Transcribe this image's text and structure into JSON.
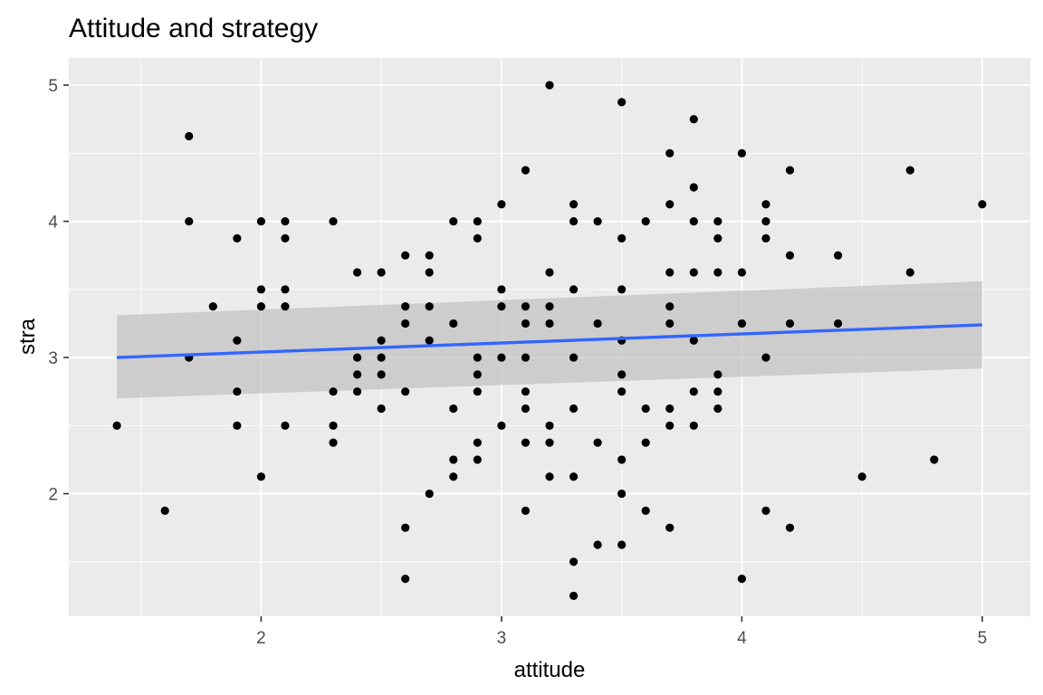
{
  "chart_data": {
    "type": "scatter",
    "title": "Attitude and strategy",
    "xlabel": "attitude",
    "ylabel": "stra",
    "xlim": [
      1.2,
      5.2
    ],
    "ylim": [
      1.1,
      5.2
    ],
    "x_ticks": [
      2,
      3,
      4,
      5
    ],
    "y_ticks": [
      2,
      3,
      4,
      5
    ],
    "x_tick_labels": [
      "2",
      "3",
      "4",
      "5"
    ],
    "y_tick_labels": [
      "2",
      "3",
      "4",
      "5"
    ],
    "grid": true,
    "legend": "none",
    "colors": {
      "panel": "#ebebeb",
      "grid": "#ffffff",
      "point": "#000000",
      "fit_line": "#3366ff",
      "confidence_band": "#bdbdbd"
    },
    "points": [
      [
        1.4,
        2.5
      ],
      [
        1.6,
        1.875
      ],
      [
        1.7,
        4.625
      ],
      [
        1.7,
        4.0
      ],
      [
        1.7,
        3.0
      ],
      [
        1.8,
        3.375
      ],
      [
        1.9,
        3.875
      ],
      [
        1.9,
        3.125
      ],
      [
        1.9,
        2.75
      ],
      [
        1.9,
        2.5
      ],
      [
        2.0,
        4.0
      ],
      [
        2.0,
        3.5
      ],
      [
        2.0,
        3.375
      ],
      [
        2.0,
        2.125
      ],
      [
        2.1,
        4.0
      ],
      [
        2.1,
        3.875
      ],
      [
        2.1,
        3.5
      ],
      [
        2.1,
        3.375
      ],
      [
        2.1,
        2.5
      ],
      [
        2.3,
        4.0
      ],
      [
        2.3,
        2.75
      ],
      [
        2.3,
        2.5
      ],
      [
        2.3,
        2.375
      ],
      [
        2.4,
        3.625
      ],
      [
        2.4,
        3.0
      ],
      [
        2.4,
        2.875
      ],
      [
        2.4,
        2.75
      ],
      [
        2.5,
        3.625
      ],
      [
        2.5,
        3.125
      ],
      [
        2.5,
        3.0
      ],
      [
        2.5,
        2.875
      ],
      [
        2.5,
        2.625
      ],
      [
        2.6,
        3.75
      ],
      [
        2.6,
        3.375
      ],
      [
        2.6,
        3.25
      ],
      [
        2.6,
        2.75
      ],
      [
        2.6,
        1.75
      ],
      [
        2.6,
        1.375
      ],
      [
        2.7,
        3.75
      ],
      [
        2.7,
        3.625
      ],
      [
        2.7,
        3.375
      ],
      [
        2.7,
        3.125
      ],
      [
        2.7,
        2.0
      ],
      [
        2.8,
        4.0
      ],
      [
        2.8,
        3.25
      ],
      [
        2.8,
        2.625
      ],
      [
        2.8,
        2.25
      ],
      [
        2.8,
        2.125
      ],
      [
        2.9,
        4.0
      ],
      [
        2.9,
        3.875
      ],
      [
        2.9,
        3.0
      ],
      [
        2.9,
        2.875
      ],
      [
        2.9,
        2.75
      ],
      [
        2.9,
        2.375
      ],
      [
        2.9,
        2.25
      ],
      [
        3.0,
        4.125
      ],
      [
        3.0,
        3.5
      ],
      [
        3.0,
        3.375
      ],
      [
        3.0,
        3.0
      ],
      [
        3.0,
        2.5
      ],
      [
        3.1,
        4.375
      ],
      [
        3.1,
        3.375
      ],
      [
        3.1,
        3.25
      ],
      [
        3.1,
        3.0
      ],
      [
        3.1,
        2.75
      ],
      [
        3.1,
        2.625
      ],
      [
        3.1,
        2.375
      ],
      [
        3.1,
        1.875
      ],
      [
        3.2,
        5.0
      ],
      [
        3.2,
        3.625
      ],
      [
        3.2,
        3.375
      ],
      [
        3.2,
        3.25
      ],
      [
        3.2,
        2.5
      ],
      [
        3.2,
        2.375
      ],
      [
        3.2,
        2.125
      ],
      [
        3.3,
        4.125
      ],
      [
        3.3,
        4.0
      ],
      [
        3.3,
        3.5
      ],
      [
        3.3,
        3.0
      ],
      [
        3.3,
        2.625
      ],
      [
        3.3,
        2.125
      ],
      [
        3.3,
        1.5
      ],
      [
        3.3,
        1.25
      ],
      [
        3.4,
        4.0
      ],
      [
        3.4,
        3.25
      ],
      [
        3.4,
        2.375
      ],
      [
        3.4,
        1.625
      ],
      [
        3.5,
        4.875
      ],
      [
        3.5,
        3.875
      ],
      [
        3.5,
        3.5
      ],
      [
        3.5,
        3.125
      ],
      [
        3.5,
        2.875
      ],
      [
        3.5,
        2.75
      ],
      [
        3.5,
        2.25
      ],
      [
        3.5,
        2.0
      ],
      [
        3.5,
        1.625
      ],
      [
        3.6,
        4.0
      ],
      [
        3.6,
        2.625
      ],
      [
        3.6,
        2.375
      ],
      [
        3.6,
        1.875
      ],
      [
        3.7,
        4.5
      ],
      [
        3.7,
        4.125
      ],
      [
        3.7,
        3.625
      ],
      [
        3.7,
        3.375
      ],
      [
        3.7,
        3.25
      ],
      [
        3.7,
        2.625
      ],
      [
        3.7,
        2.5
      ],
      [
        3.7,
        1.75
      ],
      [
        3.8,
        4.75
      ],
      [
        3.8,
        4.25
      ],
      [
        3.8,
        4.0
      ],
      [
        3.8,
        3.625
      ],
      [
        3.8,
        3.125
      ],
      [
        3.8,
        2.75
      ],
      [
        3.8,
        2.5
      ],
      [
        3.9,
        4.0
      ],
      [
        3.9,
        3.875
      ],
      [
        3.9,
        3.625
      ],
      [
        3.9,
        2.875
      ],
      [
        3.9,
        2.75
      ],
      [
        3.9,
        2.625
      ],
      [
        4.0,
        4.5
      ],
      [
        4.0,
        3.625
      ],
      [
        4.0,
        3.25
      ],
      [
        4.0,
        1.375
      ],
      [
        4.1,
        4.125
      ],
      [
        4.1,
        4.0
      ],
      [
        4.1,
        3.875
      ],
      [
        4.1,
        3.0
      ],
      [
        4.1,
        1.875
      ],
      [
        4.2,
        4.375
      ],
      [
        4.2,
        3.75
      ],
      [
        4.2,
        3.25
      ],
      [
        4.2,
        1.75
      ],
      [
        4.4,
        3.75
      ],
      [
        4.4,
        3.25
      ],
      [
        4.5,
        2.125
      ],
      [
        4.7,
        4.375
      ],
      [
        4.7,
        3.625
      ],
      [
        4.8,
        2.25
      ],
      [
        5.0,
        4.125
      ]
    ],
    "fit": {
      "method": "linear",
      "x_range": [
        1.4,
        5.0
      ],
      "y_at_ends": [
        3.0,
        3.24
      ],
      "band_upper_at_ends": [
        3.31,
        3.56
      ],
      "band_lower_at_ends": [
        2.7,
        2.92
      ]
    }
  }
}
